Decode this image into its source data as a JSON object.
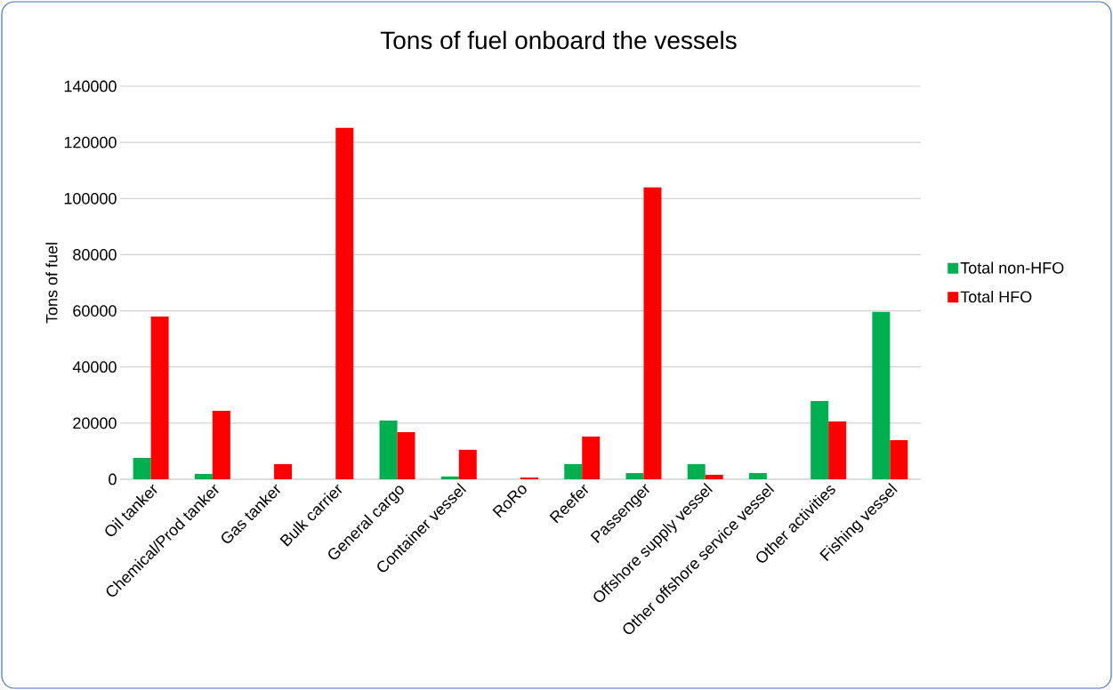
{
  "chart_data": {
    "type": "bar",
    "title": "Tons of fuel onboard the vessels",
    "ylabel": "Tons of fuel",
    "categories": [
      "Oil tanker",
      "Chemical/Prod tanker",
      "Gas tanker",
      "Bulk carrier",
      "General cargo",
      "Container vessel",
      "RoRo",
      "Reefer",
      "Passenger",
      "Offshore supply vessel",
      "Other offshore service vessel",
      "Other activities",
      "Fishing vessel"
    ],
    "series": [
      {
        "name": "Total non-HFO",
        "color": "#00b050",
        "values": [
          7600,
          1900,
          0,
          0,
          20900,
          1000,
          0,
          5400,
          2200,
          5400,
          2200,
          27900,
          59600
        ]
      },
      {
        "name": "Total HFO",
        "color": "#ff0000",
        "values": [
          58000,
          24400,
          5400,
          125200,
          16800,
          10500,
          600,
          15200,
          104000,
          1600,
          0,
          20600,
          13900
        ]
      }
    ],
    "ylim": [
      0,
      140000
    ],
    "yticks": [
      0,
      20000,
      40000,
      60000,
      80000,
      100000,
      120000,
      140000
    ],
    "grid": "y",
    "legend": "right"
  }
}
